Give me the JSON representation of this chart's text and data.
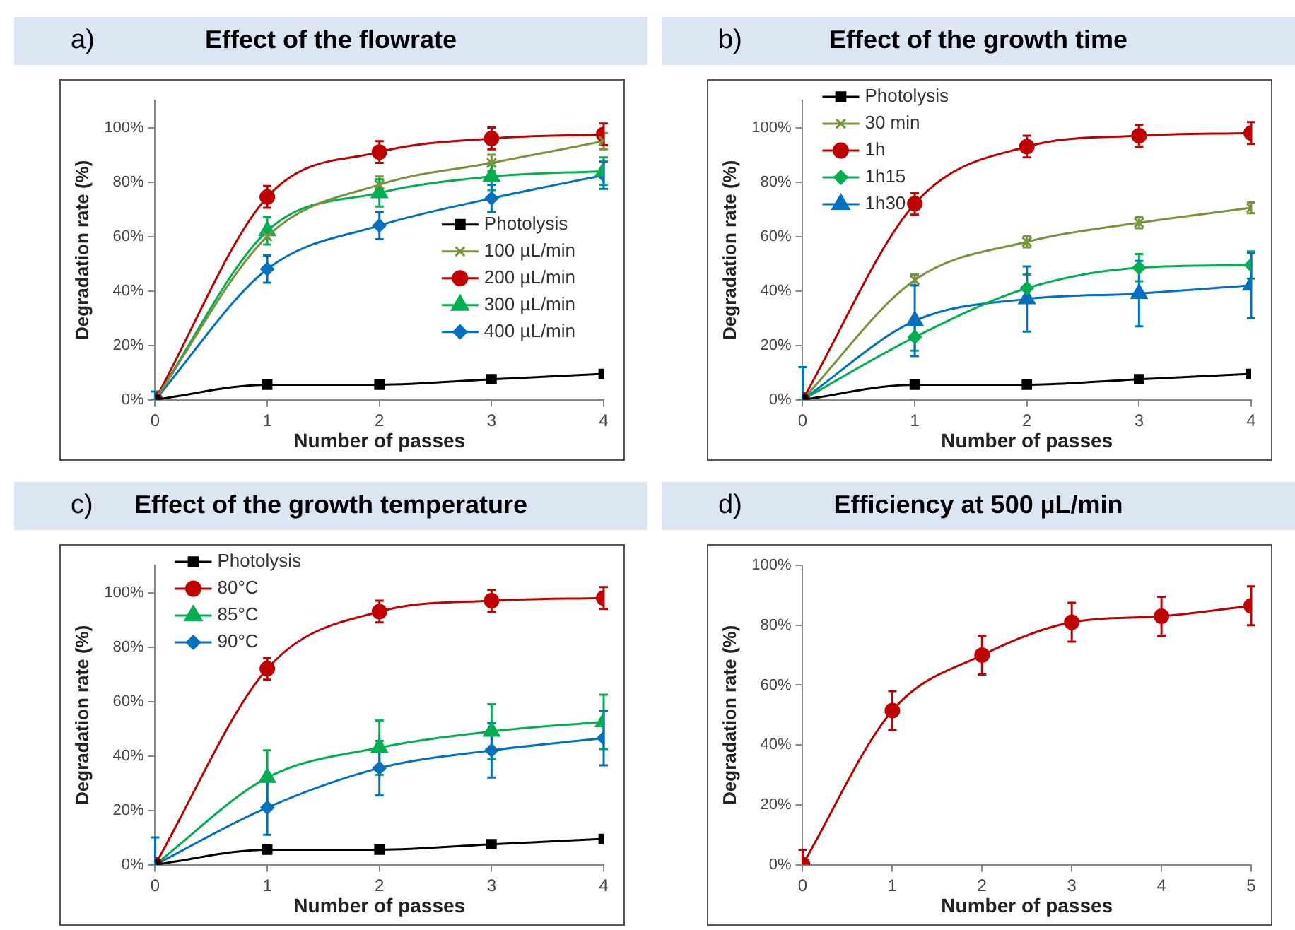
{
  "chart_data": [
    {
      "type": "line",
      "title": "Effect of the flowrate",
      "annotations": [
        "a)"
      ],
      "xlabel": "Number of passes",
      "ylabel": "Degradation rate (%)",
      "x": [
        0,
        1,
        2,
        3,
        4
      ],
      "xlim": [
        0,
        4
      ],
      "xticks": [
        0,
        1,
        2,
        3,
        4
      ],
      "ylim": [
        0,
        110
      ],
      "yticks": [
        {
          "value": 0,
          "label": "0%"
        },
        {
          "value": 20,
          "label": "20%"
        },
        {
          "value": 40,
          "label": "40%"
        },
        {
          "value": 60,
          "label": "60%"
        },
        {
          "value": 80,
          "label": "80%"
        },
        {
          "value": 100,
          "label": "100%"
        }
      ],
      "legend": "center right",
      "series": [
        {
          "name": "Photolysis",
          "color": "#000000",
          "marker": "square",
          "values": [
            0,
            5.5,
            5.5,
            7.5,
            9.5
          ]
        },
        {
          "name": "100 µL/min",
          "color": "#77933c",
          "marker": "cross",
          "values": [
            0,
            60,
            79,
            87,
            95
          ],
          "errors": [
            null,
            null,
            3,
            3,
            3
          ]
        },
        {
          "name": "200 µL/min",
          "color": "#c00000",
          "marker": "circle",
          "values": [
            0,
            74.5,
            91,
            96,
            97.5
          ],
          "errors": [
            null,
            4,
            4,
            4,
            4
          ]
        },
        {
          "name": "300 µL/min",
          "color": "#00b050",
          "marker": "triangle",
          "values": [
            0,
            62,
            76,
            82,
            84
          ],
          "errors": [
            null,
            5,
            5,
            5,
            5
          ]
        },
        {
          "name": "400 µL/min",
          "color": "#0070c0",
          "marker": "diamond",
          "values": [
            0,
            48,
            64,
            74,
            82.5
          ],
          "errors": [
            [
              0,
              3
            ],
            5,
            5,
            5,
            5
          ]
        }
      ]
    },
    {
      "type": "line",
      "title": "Effect of the growth time",
      "annotations": [
        "b)"
      ],
      "xlabel": "Number of passes",
      "ylabel": "Degradation rate (%)",
      "x": [
        0,
        1,
        2,
        3,
        4
      ],
      "xlim": [
        0,
        4
      ],
      "xticks": [
        0,
        1,
        2,
        3,
        4
      ],
      "ylim": [
        0,
        110
      ],
      "yticks": [
        {
          "value": 0,
          "label": "0%"
        },
        {
          "value": 20,
          "label": "20%"
        },
        {
          "value": 40,
          "label": "40%"
        },
        {
          "value": 60,
          "label": "60%"
        },
        {
          "value": 80,
          "label": "80%"
        },
        {
          "value": 100,
          "label": "100%"
        }
      ],
      "legend": "top left",
      "series": [
        {
          "name": "Photolysis",
          "color": "#000000",
          "marker": "square",
          "values": [
            0,
            5.5,
            5.5,
            7.5,
            9.5
          ]
        },
        {
          "name": "30 min",
          "color": "#77933c",
          "marker": "cross",
          "values": [
            0,
            44,
            58,
            65,
            70.5
          ],
          "errors": [
            null,
            2,
            2,
            2,
            2
          ]
        },
        {
          "name": "1h",
          "color": "#c00000",
          "marker": "circle",
          "values": [
            0,
            72,
            93,
            97,
            98
          ],
          "errors": [
            null,
            4,
            4,
            4,
            4
          ]
        },
        {
          "name": "1h15",
          "color": "#00b050",
          "marker": "diamond",
          "values": [
            0,
            23,
            41,
            48.5,
            49.5
          ],
          "errors": [
            null,
            5,
            5,
            5,
            5
          ]
        },
        {
          "name": "1h30",
          "color": "#0070c0",
          "marker": "triangle",
          "values": [
            0,
            29,
            37,
            39,
            42
          ],
          "errors": [
            [
              0,
              12
            ],
            13,
            12,
            12,
            12
          ]
        }
      ]
    },
    {
      "type": "line",
      "title": "Effect of the growth temperature",
      "annotations": [
        "c)"
      ],
      "xlabel": "Number of passes",
      "ylabel": "Degradation rate (%)",
      "x": [
        0,
        1,
        2,
        3,
        4
      ],
      "xlim": [
        0,
        4
      ],
      "xticks": [
        0,
        1,
        2,
        3,
        4
      ],
      "ylim": [
        0,
        110
      ],
      "yticks": [
        {
          "value": 0,
          "label": "0%"
        },
        {
          "value": 20,
          "label": "20%"
        },
        {
          "value": 40,
          "label": "40%"
        },
        {
          "value": 60,
          "label": "60%"
        },
        {
          "value": 80,
          "label": "80%"
        },
        {
          "value": 100,
          "label": "100%"
        }
      ],
      "legend": "top left",
      "series": [
        {
          "name": "Photolysis",
          "color": "#000000",
          "marker": "square",
          "values": [
            0,
            5.5,
            5.5,
            7.5,
            9.5
          ]
        },
        {
          "name": "80°C",
          "color": "#c00000",
          "marker": "circle",
          "values": [
            0,
            72,
            93,
            97,
            98
          ],
          "errors": [
            null,
            4,
            4,
            4,
            4
          ]
        },
        {
          "name": "85°C",
          "color": "#00b050",
          "marker": "triangle",
          "values": [
            0,
            32,
            43,
            49,
            52.5
          ],
          "errors": [
            null,
            10,
            10,
            10,
            10
          ]
        },
        {
          "name": "90°C",
          "color": "#0070c0",
          "marker": "diamond",
          "values": [
            0,
            21,
            35.5,
            42,
            46.5
          ],
          "errors": [
            [
              0,
              10
            ],
            10,
            10,
            10,
            10
          ]
        }
      ]
    },
    {
      "type": "line",
      "title": "Efficiency at 500 µL/min",
      "annotations": [
        "d)"
      ],
      "xlabel": "Number of passes",
      "ylabel": "Degradation rate (%)",
      "x": [
        0,
        1,
        2,
        3,
        4,
        5
      ],
      "xlim": [
        0,
        5
      ],
      "xticks": [
        0,
        1,
        2,
        3,
        4,
        5
      ],
      "ylim": [
        0,
        100
      ],
      "yticks": [
        {
          "value": 0,
          "label": "0%"
        },
        {
          "value": 20,
          "label": "20%"
        },
        {
          "value": 40,
          "label": "40%"
        },
        {
          "value": 60,
          "label": "60%"
        },
        {
          "value": 80,
          "label": "80%"
        },
        {
          "value": 100,
          "label": "100%"
        }
      ],
      "series": [
        {
          "color": "#c00000",
          "marker": "circle",
          "values": [
            0,
            51.5,
            70,
            81,
            83,
            86.5
          ],
          "errors": [
            5,
            6.5,
            6.5,
            6.5,
            6.5,
            6.5
          ]
        }
      ]
    }
  ]
}
